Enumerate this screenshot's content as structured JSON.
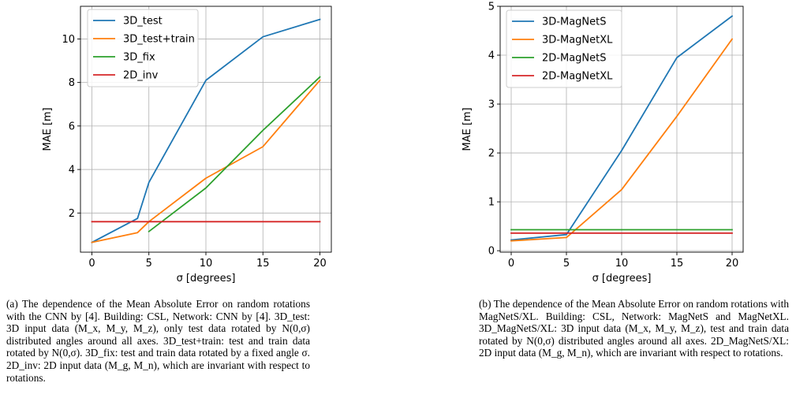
{
  "chart_data": [
    {
      "type": "line",
      "xlabel": "σ [degrees]",
      "ylabel": "MAE [m]",
      "xlim": [
        -1,
        21
      ],
      "ylim": [
        0.2,
        11.5
      ],
      "xticks": [
        0,
        5,
        10,
        15,
        20
      ],
      "yticks": [
        2,
        4,
        6,
        8,
        10
      ],
      "grid": true,
      "legend_position": "upper-left",
      "series": [
        {
          "name": "3D_test",
          "color": "#1f77b4",
          "x": [
            0,
            4,
            5,
            10,
            15,
            20
          ],
          "y": [
            0.65,
            1.75,
            3.4,
            8.1,
            10.1,
            10.9
          ]
        },
        {
          "name": "3D_test+train",
          "color": "#ff7f0e",
          "x": [
            0,
            4,
            5,
            10,
            15,
            20
          ],
          "y": [
            0.65,
            1.1,
            1.6,
            3.6,
            5.05,
            8.1
          ]
        },
        {
          "name": "3D_fix",
          "color": "#2ca02c",
          "x": [
            5,
            10,
            15,
            20
          ],
          "y": [
            1.15,
            3.15,
            5.8,
            8.25
          ]
        },
        {
          "name": "2D_inv",
          "color": "#d62728",
          "x": [
            0,
            20
          ],
          "y": [
            1.6,
            1.6
          ]
        }
      ],
      "caption": "(a) The dependence of the Mean Absolute Error on random rotations with the CNN by [4]. Building: CSL, Network: CNN by [4]. 3D_test: 3D input data (M_x, M_y, M_z), only test data rotated by N(0,σ) distributed angles around all axes. 3D_test+train: test and train data rotated by N(0,σ). 3D_fix: test and train data rotated by a fixed angle σ. 2D_inv: 2D input data (M_g, M_n), which are invariant with respect to rotations."
    },
    {
      "type": "line",
      "xlabel": "σ [degrees]",
      "ylabel": "MAE [m]",
      "xlim": [
        -1,
        21
      ],
      "ylim": [
        -0.03,
        5.0
      ],
      "xticks": [
        0,
        5,
        10,
        15,
        20
      ],
      "yticks": [
        0,
        1,
        2,
        3,
        4,
        5
      ],
      "grid": true,
      "legend_position": "upper-left",
      "series": [
        {
          "name": "3D-MagNetS",
          "color": "#1f77b4",
          "x": [
            0,
            5,
            10,
            15,
            20
          ],
          "y": [
            0.22,
            0.33,
            2.05,
            3.95,
            4.8
          ]
        },
        {
          "name": "3D-MagNetXL",
          "color": "#ff7f0e",
          "x": [
            0,
            5,
            10,
            15,
            20
          ],
          "y": [
            0.2,
            0.27,
            1.25,
            2.75,
            4.33
          ]
        },
        {
          "name": "2D-MagNetS",
          "color": "#2ca02c",
          "x": [
            0,
            20
          ],
          "y": [
            0.43,
            0.43
          ]
        },
        {
          "name": "2D-MagNetXL",
          "color": "#d62728",
          "x": [
            0,
            20
          ],
          "y": [
            0.36,
            0.36
          ]
        }
      ],
      "caption": "(b) The dependence of the Mean Absolute Error on random rotations with MagNetS/XL. Building: CSL, Network: MagNetS and MagNetXL. 3D_MagNetS/XL: 3D input data (M_x, M_y, M_z), test and train data rotated by N(0,σ) distributed angles around all axes. 2D_MagNetS/XL: 2D input data (M_g, M_n), which are invariant with respect to rotations."
    }
  ]
}
